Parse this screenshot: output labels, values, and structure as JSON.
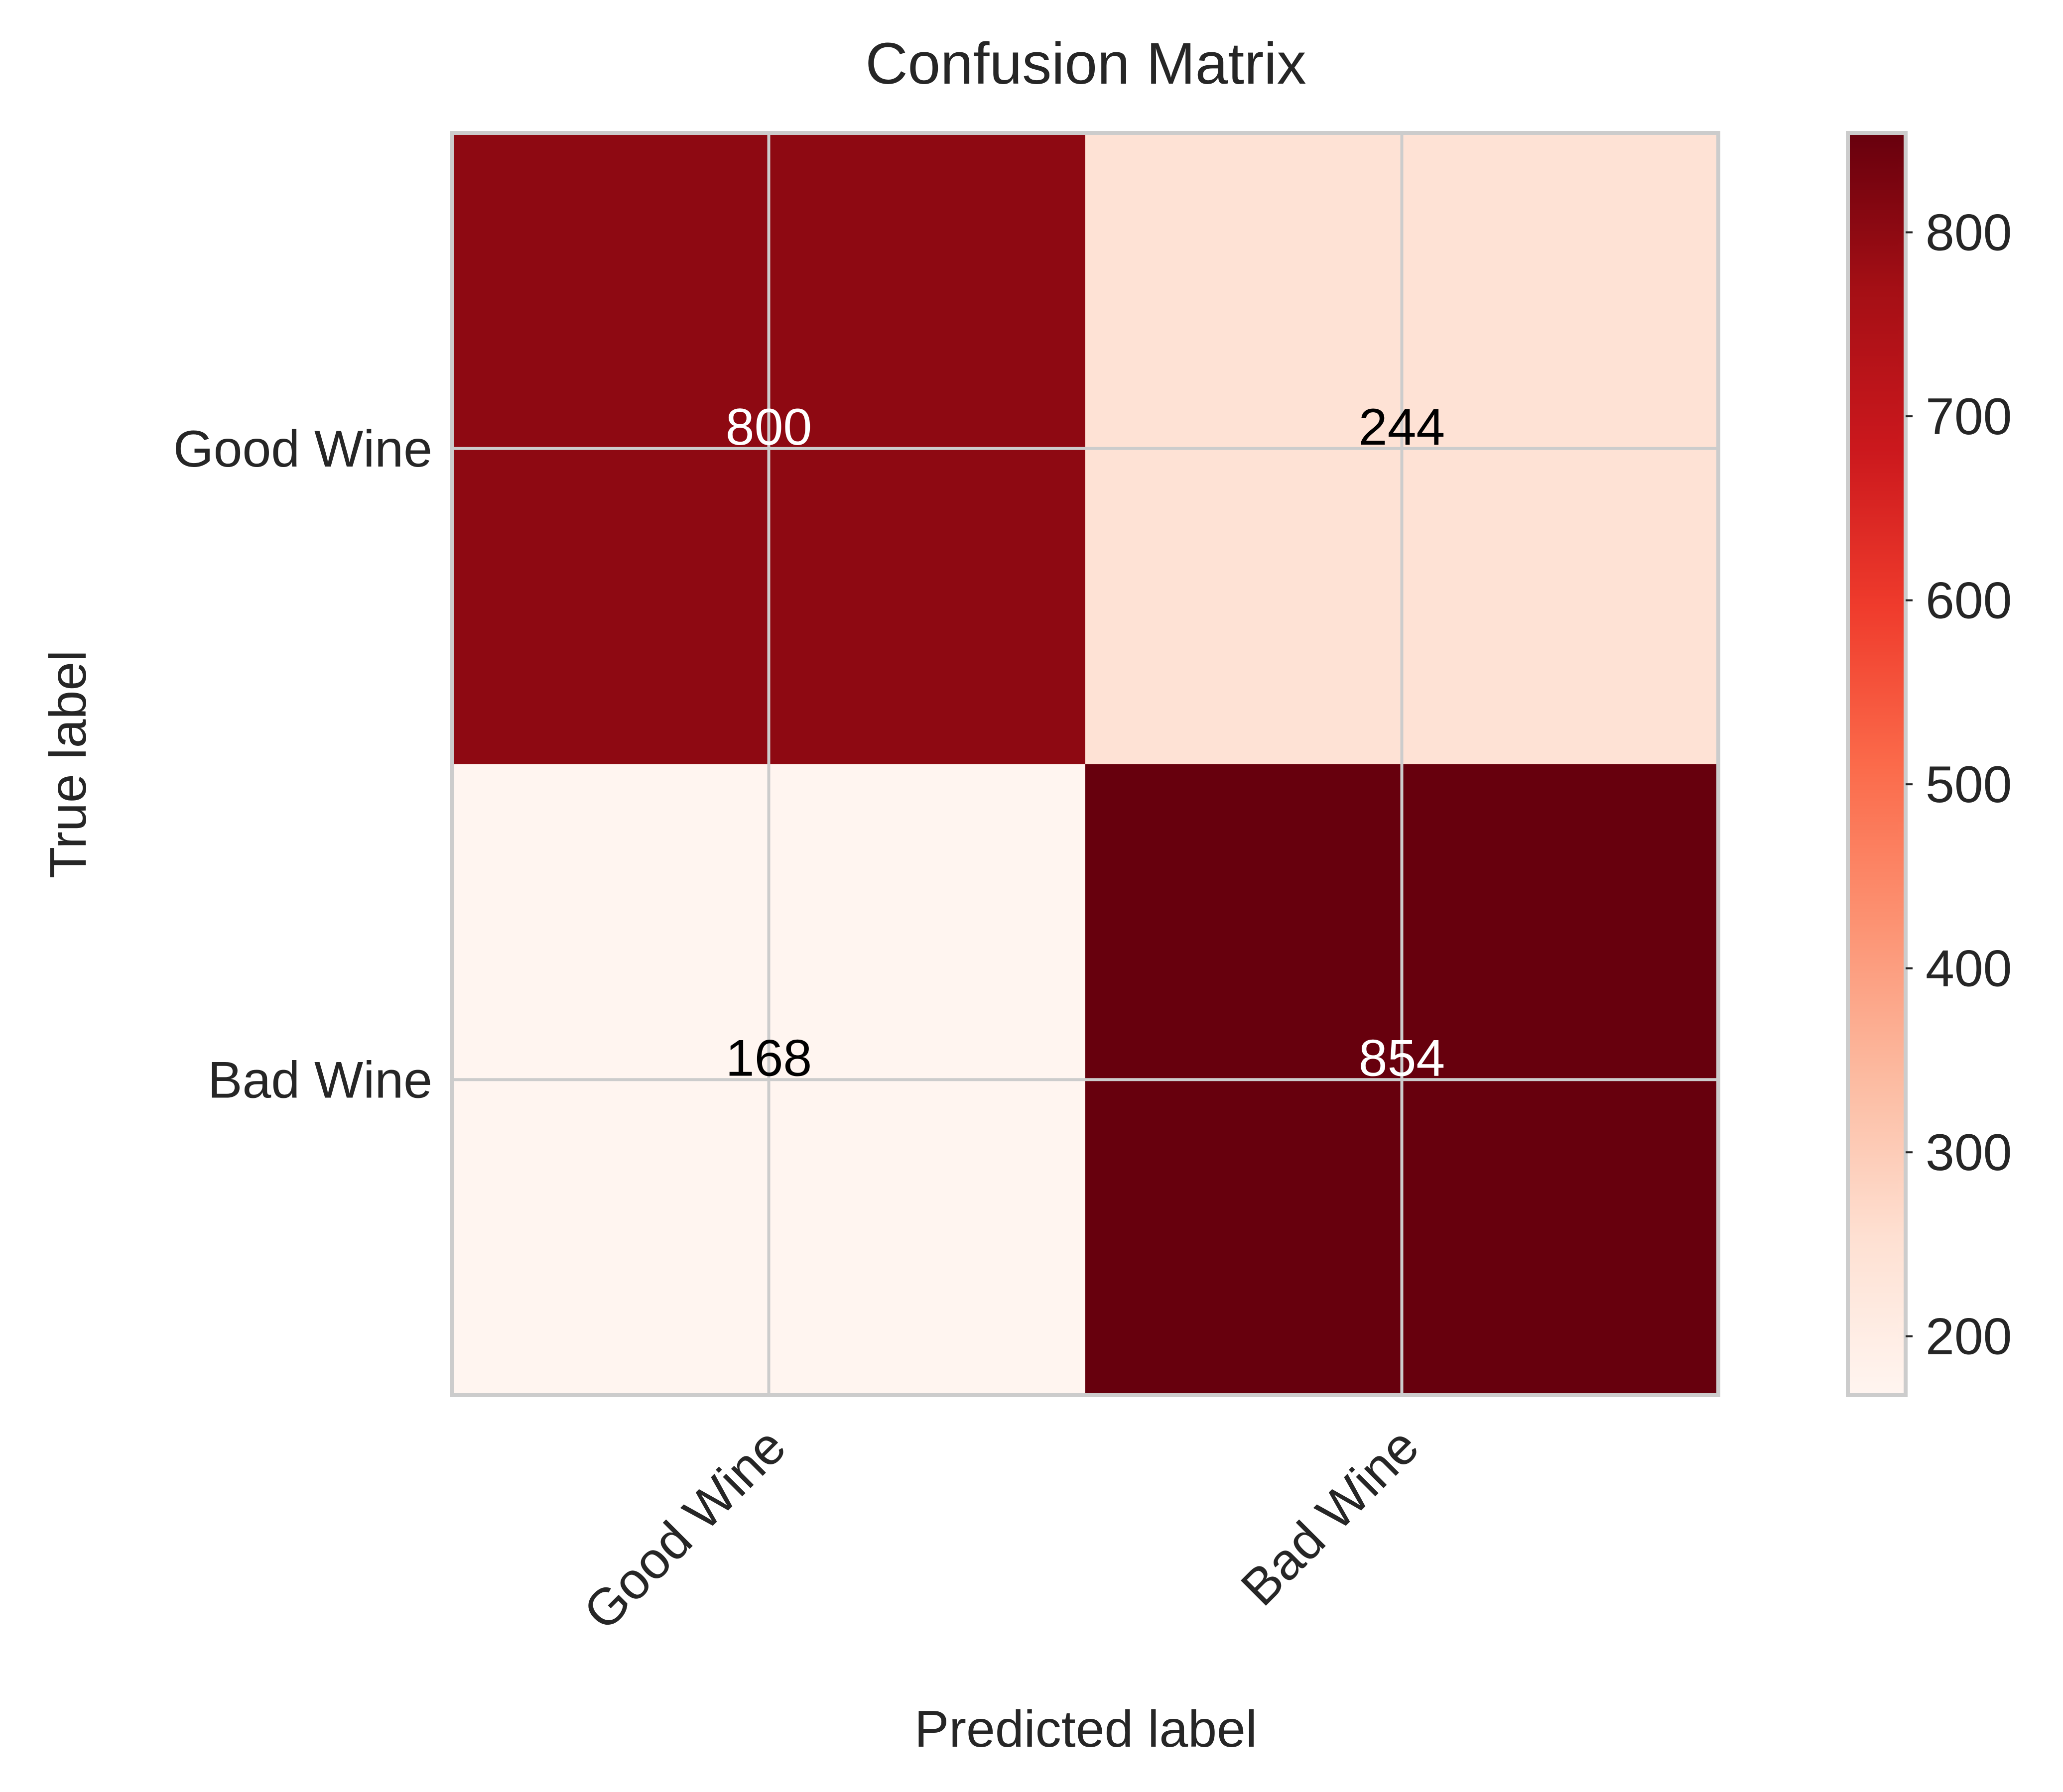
{
  "chart_data": {
    "type": "heatmap",
    "title": "Confusion Matrix",
    "xlabel": "Predicted label",
    "ylabel": "True label",
    "x_categories": [
      "Good Wine",
      "Bad Wine"
    ],
    "y_categories": [
      "Good Wine",
      "Bad Wine"
    ],
    "values": [
      [
        800,
        244
      ],
      [
        168,
        854
      ]
    ],
    "colormap": "Reds",
    "colorbar": {
      "range": [
        168,
        854
      ],
      "ticks": [
        200,
        300,
        400,
        500,
        600,
        700,
        800
      ]
    },
    "grid": true
  },
  "colors": {
    "grid": "#cccccc",
    "text_dark": "#262626",
    "cell_text_light": "#ffffff",
    "cell_text_dark": "#000000"
  }
}
